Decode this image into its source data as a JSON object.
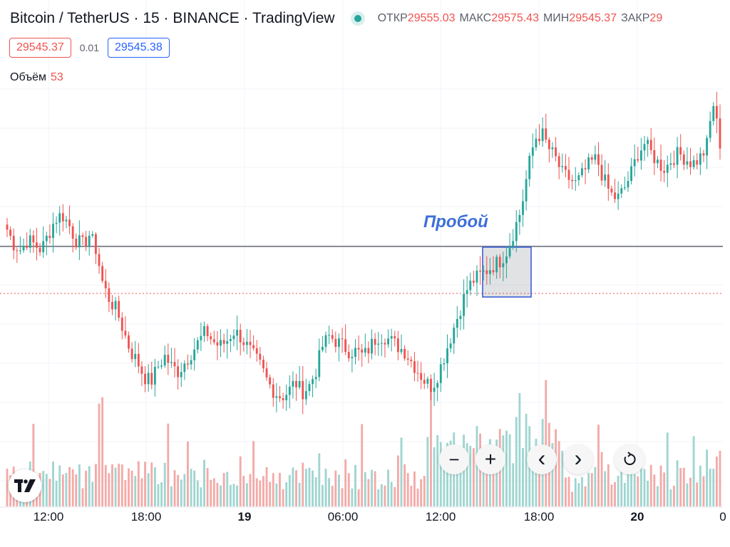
{
  "header": {
    "title": "Bitcoin / TetherUS · 15 · BINANCE · TradingView",
    "ohlc": [
      {
        "label": "ОТКР",
        "value": "29555.03"
      },
      {
        "label": "МАКС",
        "value": "29575.43"
      },
      {
        "label": "МИН",
        "value": "29545.37"
      },
      {
        "label": "ЗАКР",
        "value": "29"
      }
    ]
  },
  "quotes": {
    "sell": "29545.37",
    "spread": "0.01",
    "buy": "29545.38"
  },
  "volume": {
    "label": "Объём",
    "value": "53"
  },
  "annotation": {
    "text": "Пробой"
  },
  "controls": {
    "zoom_out": "−",
    "zoom_in": "+",
    "back": "‹",
    "forward": "›"
  },
  "icons": {
    "live": "live-dot-icon",
    "logo": "tradingview-logo-icon",
    "reset": "reset-icon"
  },
  "colors": {
    "up": "#26a69a",
    "down": "#ef5350",
    "up_volume": "#9fd5d0",
    "down_volume": "#f3aaa8",
    "breakout_box": "#2f55d4",
    "level_line": "#8a8d96"
  },
  "chart_data": {
    "type": "candlestick",
    "x_tick_labels": [
      "12:00",
      "18:00",
      "19",
      "06:00",
      "12:00",
      "18:00",
      "20",
      "0"
    ],
    "resistance_level": 29555,
    "current_price": 29545.37,
    "breakout_zone": {
      "x_from": "14:40",
      "x_to": "17:40",
      "y_from": 29545.4,
      "y_to": 29555.0
    },
    "close_path": [
      29556,
      29553,
      29552,
      29554,
      29553,
      29552,
      29555,
      29558,
      29559,
      29557,
      29554,
      29553,
      29555,
      29552,
      29545,
      29542,
      29540,
      29536,
      29532,
      29530,
      29527,
      29526,
      29529,
      29531,
      29529,
      29528,
      29530,
      29532,
      29534,
      29536,
      29534,
      29533,
      29534,
      29536,
      29535,
      29533,
      29531,
      29529,
      29526,
      29524,
      29523,
      29524,
      29526,
      29524,
      29525,
      29528,
      29533,
      29535,
      29534,
      29533,
      29532,
      29532,
      29531,
      29533,
      29535,
      29535,
      29534,
      29533,
      29532,
      29530,
      29528,
      29526,
      29525,
      29528,
      29532,
      29536,
      29540,
      29544,
      29546,
      29547,
      29548,
      29549,
      29550,
      29552,
      29556,
      29560,
      29568,
      29574,
      29575,
      29572,
      29570,
      29567,
      29566,
      29565,
      29567,
      29569,
      29570,
      29566,
      29563,
      29562,
      29564,
      29567,
      29571,
      29573,
      29571,
      29569,
      29568,
      29570,
      29571,
      29570,
      29569,
      29570,
      29572,
      29581,
      29573
    ]
  }
}
